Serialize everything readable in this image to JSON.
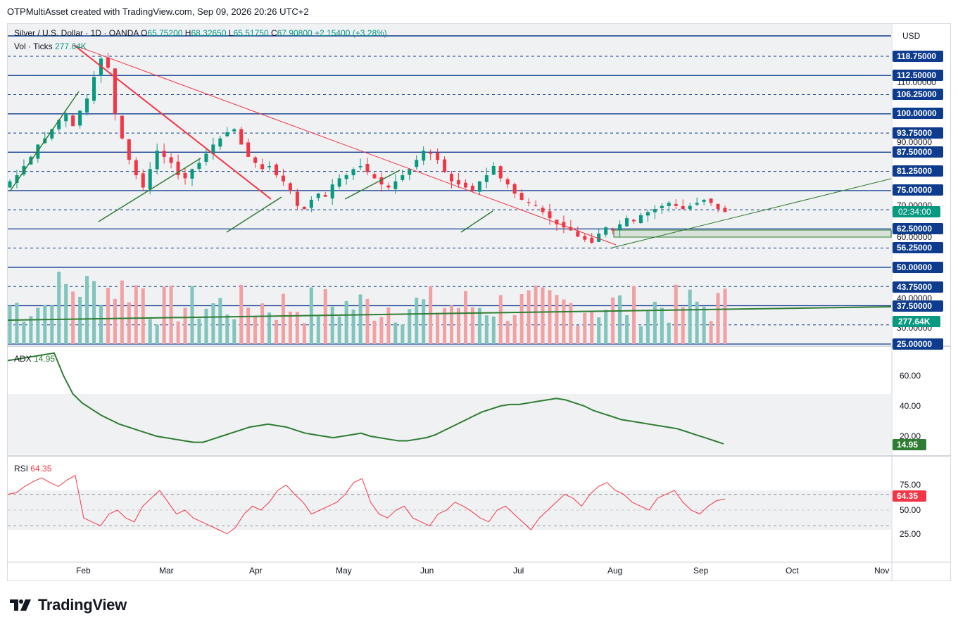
{
  "header": {
    "credit": "OTPMultiAsset created with TradingView.com, Sep 09, 2026 20:26 UTC+2"
  },
  "legend": {
    "symbol": "Silver / U.S. Dollar · 1D · OANDA",
    "open_label": "O",
    "open": "65.75200",
    "high_label": "H",
    "high": "68.32650",
    "low_label": "L",
    "low": "65.51750",
    "close_label": "C",
    "close": "67.90800",
    "change": "+2.15400 (+3.28%)",
    "vol_label": "Vol · Ticks",
    "vol_value": "277.64K",
    "adx_label": "ADX",
    "adx_value": "14.95",
    "rsi_label": "RSI",
    "rsi_value": "64.35"
  },
  "price_scale": {
    "currency": "USD",
    "labels": [
      "118.75000",
      "112.50000",
      "110.00000",
      "106.25000",
      "100.00000",
      "93.75000",
      "90.00000",
      "87.50000",
      "81.25000",
      "75.00000",
      "70.00000",
      "62.50000",
      "60.00000",
      "56.25000",
      "50.00000",
      "43.75000",
      "40.00000",
      "37.50000",
      "30.00000",
      "25.00000"
    ],
    "highlighted": [
      "118.75000",
      "112.50000",
      "106.25000",
      "100.00000",
      "93.75000",
      "87.50000",
      "81.25000",
      "75.00000",
      "62.50000",
      "56.25000",
      "50.00000",
      "43.75000",
      "37.50000",
      "25.00000"
    ],
    "countdown": "02:34:00",
    "volume_tag": "277.64K"
  },
  "adx_scale": {
    "labels": [
      "60.00",
      "40.00",
      "20.00"
    ],
    "tag": "14.95"
  },
  "rsi_scale": {
    "labels": [
      "75.00",
      "50.00",
      "25.00"
    ],
    "tag": "64.35"
  },
  "time_axis": [
    "Feb",
    "Mar",
    "Apr",
    "May",
    "Jun",
    "Jul",
    "Aug",
    "Sep",
    "Oct",
    "Nov"
  ],
  "colors": {
    "up": "#089981",
    "down": "#f23645",
    "vol_up": "#7fc4bd",
    "vol_down": "#f1a1a3",
    "level_line": "#0d3b8e",
    "trend_red": "#f23645",
    "trend_green": "#2e7d32",
    "adx": "#2e7d32",
    "rsi": "#f23645"
  },
  "chart_data": {
    "type": "candlestick",
    "price_range": [
      22,
      124
    ],
    "horizontal_levels": [
      118.75,
      112.5,
      106.25,
      100,
      93.75,
      87.5,
      81.25,
      75,
      68.75,
      62.5,
      56.25,
      50,
      43.75,
      37.5,
      31.25,
      25
    ],
    "ohlc_approx_close": [
      78,
      80,
      83,
      86,
      90,
      92,
      95,
      98,
      100,
      96,
      101,
      105,
      112,
      118,
      115,
      100,
      92,
      85,
      80,
      76,
      82,
      88,
      86,
      84,
      80,
      79,
      82,
      84,
      87,
      90,
      92,
      94,
      95,
      90,
      86,
      84,
      82,
      83,
      80,
      78,
      75,
      70,
      69,
      72,
      74,
      73,
      77,
      79,
      80,
      82,
      83,
      81,
      79,
      77,
      76,
      78,
      80,
      82,
      85,
      88,
      87,
      85,
      81,
      78,
      77,
      76,
      75,
      78,
      80,
      83,
      79,
      77,
      74,
      72,
      71,
      70,
      68,
      66,
      64,
      63,
      62,
      60,
      59,
      58,
      61,
      63,
      62,
      64,
      66,
      65,
      67,
      68,
      69,
      70,
      71,
      70,
      69,
      70,
      71,
      72,
      71,
      69,
      68
    ],
    "volume_axis_note": "Vol · Ticks",
    "adx": [
      70,
      71,
      72,
      73,
      74,
      75,
      60,
      48,
      42,
      38,
      34,
      31,
      28,
      26,
      24,
      22,
      20,
      19,
      18,
      17,
      16,
      16,
      18,
      20,
      22,
      24,
      26,
      27,
      28,
      27,
      26,
      24,
      22,
      21,
      20,
      19,
      20,
      21,
      22,
      20,
      19,
      18,
      17,
      17,
      18,
      19,
      21,
      24,
      27,
      30,
      33,
      36,
      38,
      40,
      41,
      41,
      42,
      43,
      44,
      45,
      44,
      42,
      40,
      37,
      35,
      33,
      31,
      30,
      29,
      28,
      27,
      26,
      25,
      23,
      21,
      19,
      17,
      15
    ],
    "rsi": [
      70,
      72,
      80,
      86,
      91,
      85,
      80,
      88,
      94,
      40,
      35,
      30,
      45,
      50,
      40,
      35,
      55,
      65,
      75,
      60,
      45,
      50,
      40,
      35,
      30,
      25,
      20,
      28,
      45,
      55,
      50,
      60,
      75,
      82,
      70,
      60,
      45,
      50,
      55,
      60,
      70,
      85,
      90,
      60,
      45,
      40,
      50,
      55,
      40,
      35,
      30,
      45,
      50,
      60,
      55,
      48,
      40,
      35,
      50,
      55,
      45,
      35,
      25,
      40,
      50,
      60,
      70,
      65,
      55,
      70,
      80,
      85,
      75,
      70,
      60,
      55,
      50,
      65,
      70,
      75,
      60,
      50,
      45,
      55,
      62,
      64
    ]
  }
}
